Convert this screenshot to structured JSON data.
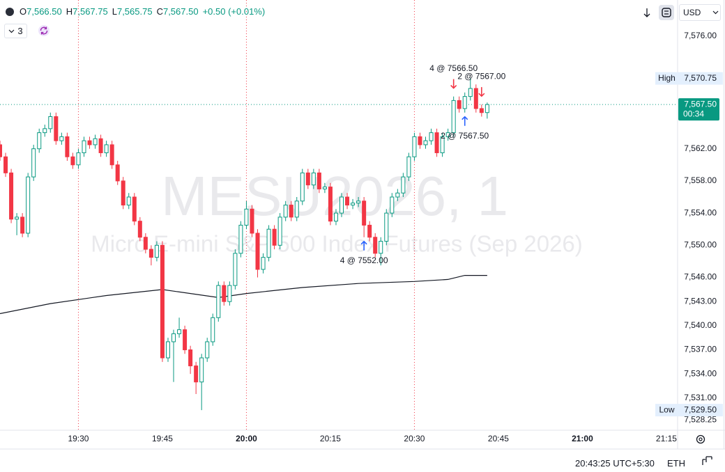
{
  "header": {
    "open_label": "O",
    "open": "7,566.50",
    "high_label": "H",
    "high": "7,567.75",
    "low_label": "L",
    "low": "7,565.75",
    "close_label": "C",
    "close": "7,567.50",
    "change": "+0.50 (+0.01%)",
    "indicators": "3",
    "currency": "USD"
  },
  "chart_data": {
    "type": "candlestick",
    "watermark_title": "MESU2026, 1",
    "watermark_subtitle": "Micro E-mini S&P 500 Index Futures (Sep 2026)",
    "x": [
      "19:16",
      "19:17",
      "19:18",
      "19:19",
      "19:20",
      "19:21",
      "19:22",
      "19:23",
      "19:24",
      "19:25",
      "19:26",
      "19:27",
      "19:28",
      "19:29",
      "19:30",
      "19:31",
      "19:32",
      "19:33",
      "19:34",
      "19:35",
      "19:36",
      "19:37",
      "19:38",
      "19:39",
      "19:40",
      "19:41",
      "19:42",
      "19:43",
      "19:44",
      "19:45",
      "19:46",
      "19:47",
      "19:48",
      "19:49",
      "19:50",
      "19:51",
      "19:52",
      "19:53",
      "19:54",
      "19:55",
      "19:56",
      "19:57",
      "19:58",
      "19:59",
      "20:00",
      "20:01",
      "20:02",
      "20:03",
      "20:04",
      "20:05",
      "20:06",
      "20:07",
      "20:08",
      "20:09",
      "20:10",
      "20:11",
      "20:12",
      "20:13",
      "20:14",
      "20:15",
      "20:16",
      "20:17",
      "20:18",
      "20:19",
      "20:20",
      "20:21",
      "20:22",
      "20:23",
      "20:24",
      "20:25",
      "20:26",
      "20:27",
      "20:28",
      "20:29",
      "20:30",
      "20:31",
      "20:32",
      "20:33",
      "20:34",
      "20:35",
      "20:36",
      "20:37",
      "20:38",
      "20:39",
      "20:40",
      "20:41",
      "20:42",
      "20:43"
    ],
    "open": [
      7562.5,
      7561,
      7559,
      7553.25,
      7553.5,
      7551.5,
      7558.5,
      7562,
      7564,
      7564.5,
      7566,
      7563,
      7563.5,
      7561,
      7560,
      7561.5,
      7563,
      7562.5,
      7563.25,
      7561.5,
      7562.5,
      7560,
      7558,
      7555,
      7556,
      7553,
      7551,
      7549.5,
      7548.5,
      7550,
      7536,
      7538,
      7539,
      7539.5,
      7537,
      7535,
      7533,
      7536,
      7538,
      7541,
      7545,
      7543,
      7545,
      7549,
      7552.5,
      7554.5,
      7551.5,
      7547,
      7548.5,
      7552,
      7550,
      7553.5,
      7555,
      7553.5,
      7555.5,
      7559,
      7557.5,
      7559,
      7557,
      7557.25,
      7553,
      7554,
      7556,
      7555,
      7555.25,
      7555.5,
      7552.5,
      7551,
      7549,
      7550.5,
      7554,
      7556,
      7556.5,
      7558.5,
      7561,
      7563.5,
      7562.5,
      7563,
      7564,
      7561.5,
      7563.5,
      7564,
      7568,
      7567,
      7568.5,
      7569.5,
      7567,
      7566.5
    ],
    "high": [
      7563,
      7561.5,
      7559.5,
      7554,
      7554,
      7559,
      7562.5,
      7564.5,
      7565,
      7566.5,
      7566.5,
      7564,
      7564,
      7561.5,
      7562,
      7563.5,
      7563.5,
      7563.75,
      7563.75,
      7563,
      7563,
      7560.5,
      7558.5,
      7556.5,
      7556.5,
      7553.5,
      7551.5,
      7550,
      7550.5,
      7550.5,
      7538.5,
      7539.5,
      7541,
      7540,
      7537.5,
      7535.5,
      7536.5,
      7538.5,
      7541.5,
      7545.5,
      7545.5,
      7545.5,
      7549.5,
      7553,
      7555.5,
      7555,
      7552,
      7549,
      7552.5,
      7552.5,
      7554,
      7555.5,
      7555.5,
      7556,
      7559.5,
      7559.5,
      7559.5,
      7559.5,
      7557.75,
      7557.75,
      7554.5,
      7556.5,
      7556.5,
      7555.75,
      7556,
      7556,
      7553,
      7551.5,
      7551,
      7554.5,
      7556.5,
      7557,
      7559,
      7561.5,
      7564,
      7564,
      7563.5,
      7564.5,
      7564.5,
      7564,
      7564.5,
      7568.5,
      7568.5,
      7569,
      7570.75,
      7570,
      7567.5,
      7567.75
    ],
    "low": [
      7560.5,
      7558.5,
      7552.75,
      7551.25,
      7551,
      7551,
      7558,
      7561.5,
      7563.5,
      7564,
      7562.5,
      7562.5,
      7560.5,
      7559.5,
      7559.5,
      7561,
      7562,
      7562,
      7561,
      7561,
      7559.5,
      7557.5,
      7554.5,
      7554.5,
      7552.5,
      7550.5,
      7549,
      7547.5,
      7548,
      7535.5,
      7535.5,
      7533,
      7538.5,
      7536.5,
      7534,
      7531.5,
      7529.5,
      7535.5,
      7537.5,
      7540.5,
      7542.5,
      7542.5,
      7544.5,
      7548.5,
      7552,
      7551,
      7546,
      7546.5,
      7548,
      7549.5,
      7549.5,
      7553,
      7553,
      7553,
      7555,
      7557,
      7557,
      7556.5,
      7556.5,
      7552.5,
      7552.5,
      7553.5,
      7554.5,
      7554.5,
      7554.75,
      7551,
      7550.5,
      7548.5,
      7547.5,
      7550,
      7553.5,
      7555.5,
      7556,
      7558,
      7560.5,
      7562,
      7562,
      7562.5,
      7561,
      7561,
      7563,
      7563.5,
      7566.5,
      7566.5,
      7568,
      7566.5,
      7566,
      7565.75
    ],
    "close": [
      7561,
      7559,
      7553.25,
      7553.5,
      7551.5,
      7558.5,
      7562,
      7564,
      7564.5,
      7566,
      7563,
      7563.5,
      7561,
      7560,
      7561.5,
      7563,
      7562.5,
      7563.25,
      7561.5,
      7562.5,
      7560,
      7558,
      7555,
      7556,
      7553,
      7551,
      7549.5,
      7548.5,
      7550,
      7536,
      7538,
      7539,
      7539.5,
      7537,
      7535,
      7533,
      7536,
      7538,
      7541,
      7545,
      7543,
      7545,
      7549,
      7552.5,
      7554.5,
      7551.5,
      7547,
      7548.5,
      7552,
      7550,
      7553.5,
      7555,
      7553.5,
      7555.5,
      7559,
      7557.5,
      7559,
      7557,
      7557.25,
      7553,
      7554,
      7556,
      7555,
      7555.25,
      7555.5,
      7552.5,
      7551,
      7549,
      7550.5,
      7554,
      7556,
      7556.5,
      7558.5,
      7561,
      7563.5,
      7562.5,
      7563,
      7564,
      7561.5,
      7563.5,
      7564,
      7568,
      7567,
      7568.5,
      7569.5,
      7567,
      7566.5,
      7567.5
    ],
    "up_color": "#089981",
    "down_color": "#f23645",
    "xlim": [
      "19:16",
      "21:17"
    ],
    "xticks": [
      "19:30",
      "19:45",
      "20:00",
      "20:15",
      "20:30",
      "20:45",
      "21:00",
      "21:15"
    ],
    "ylim": [
      7527,
      7580.5
    ],
    "yticks": [
      {
        "value": 7576,
        "label": "7,576.00"
      },
      {
        "value": 7562,
        "label": "7,562.00"
      },
      {
        "value": 7558,
        "label": "7,558.00"
      },
      {
        "value": 7554,
        "label": "7,554.00"
      },
      {
        "value": 7550,
        "label": "7,550.00"
      },
      {
        "value": 7546,
        "label": "7,546.00"
      },
      {
        "value": 7543,
        "label": "7,543.00"
      },
      {
        "value": 7540,
        "label": "7,540.00"
      },
      {
        "value": 7537,
        "label": "7,537.00"
      },
      {
        "value": 7534,
        "label": "7,534.00"
      },
      {
        "value": 7531,
        "label": "7,531.00"
      },
      {
        "value": 7528.25,
        "label": "7,528.25"
      }
    ],
    "session_breaks": [
      "19:30",
      "20:00",
      "20:30"
    ],
    "moving_average": {
      "color": "#131722",
      "x": [
        "19:16",
        "19:25",
        "19:35",
        "19:45",
        "19:55",
        "20:00",
        "20:10",
        "20:20",
        "20:30",
        "20:36",
        "20:39",
        "20:43"
      ],
      "values": [
        7541.5,
        7542.75,
        7543.75,
        7544.5,
        7543.5,
        7544,
        7544.75,
        7545.25,
        7545.5,
        7545.75,
        7546.25,
        7546.25
      ]
    },
    "trades": [
      {
        "x": "20:37",
        "side": "sell",
        "label": "4 @ 7566.50"
      },
      {
        "x": "20:42",
        "side": "sell",
        "label": "2 @ 7567.00"
      },
      {
        "x": "20:39",
        "side": "buy",
        "label": "2 @ 7567.50"
      },
      {
        "x": "20:21",
        "side": "buy",
        "label": "4 @ 7552.00"
      }
    ],
    "high_marker": {
      "label": "High",
      "value": 7570.75,
      "value_label": "7,570.75"
    },
    "low_marker": {
      "label": "Low",
      "value": 7529.5,
      "value_label": "7,529.50"
    },
    "last_price": {
      "value": 7567.5,
      "value_label": "7,567.50",
      "countdown": "00:34"
    }
  },
  "footer": {
    "clock": "20:43:25 UTC+5:30",
    "session": "ETH"
  }
}
